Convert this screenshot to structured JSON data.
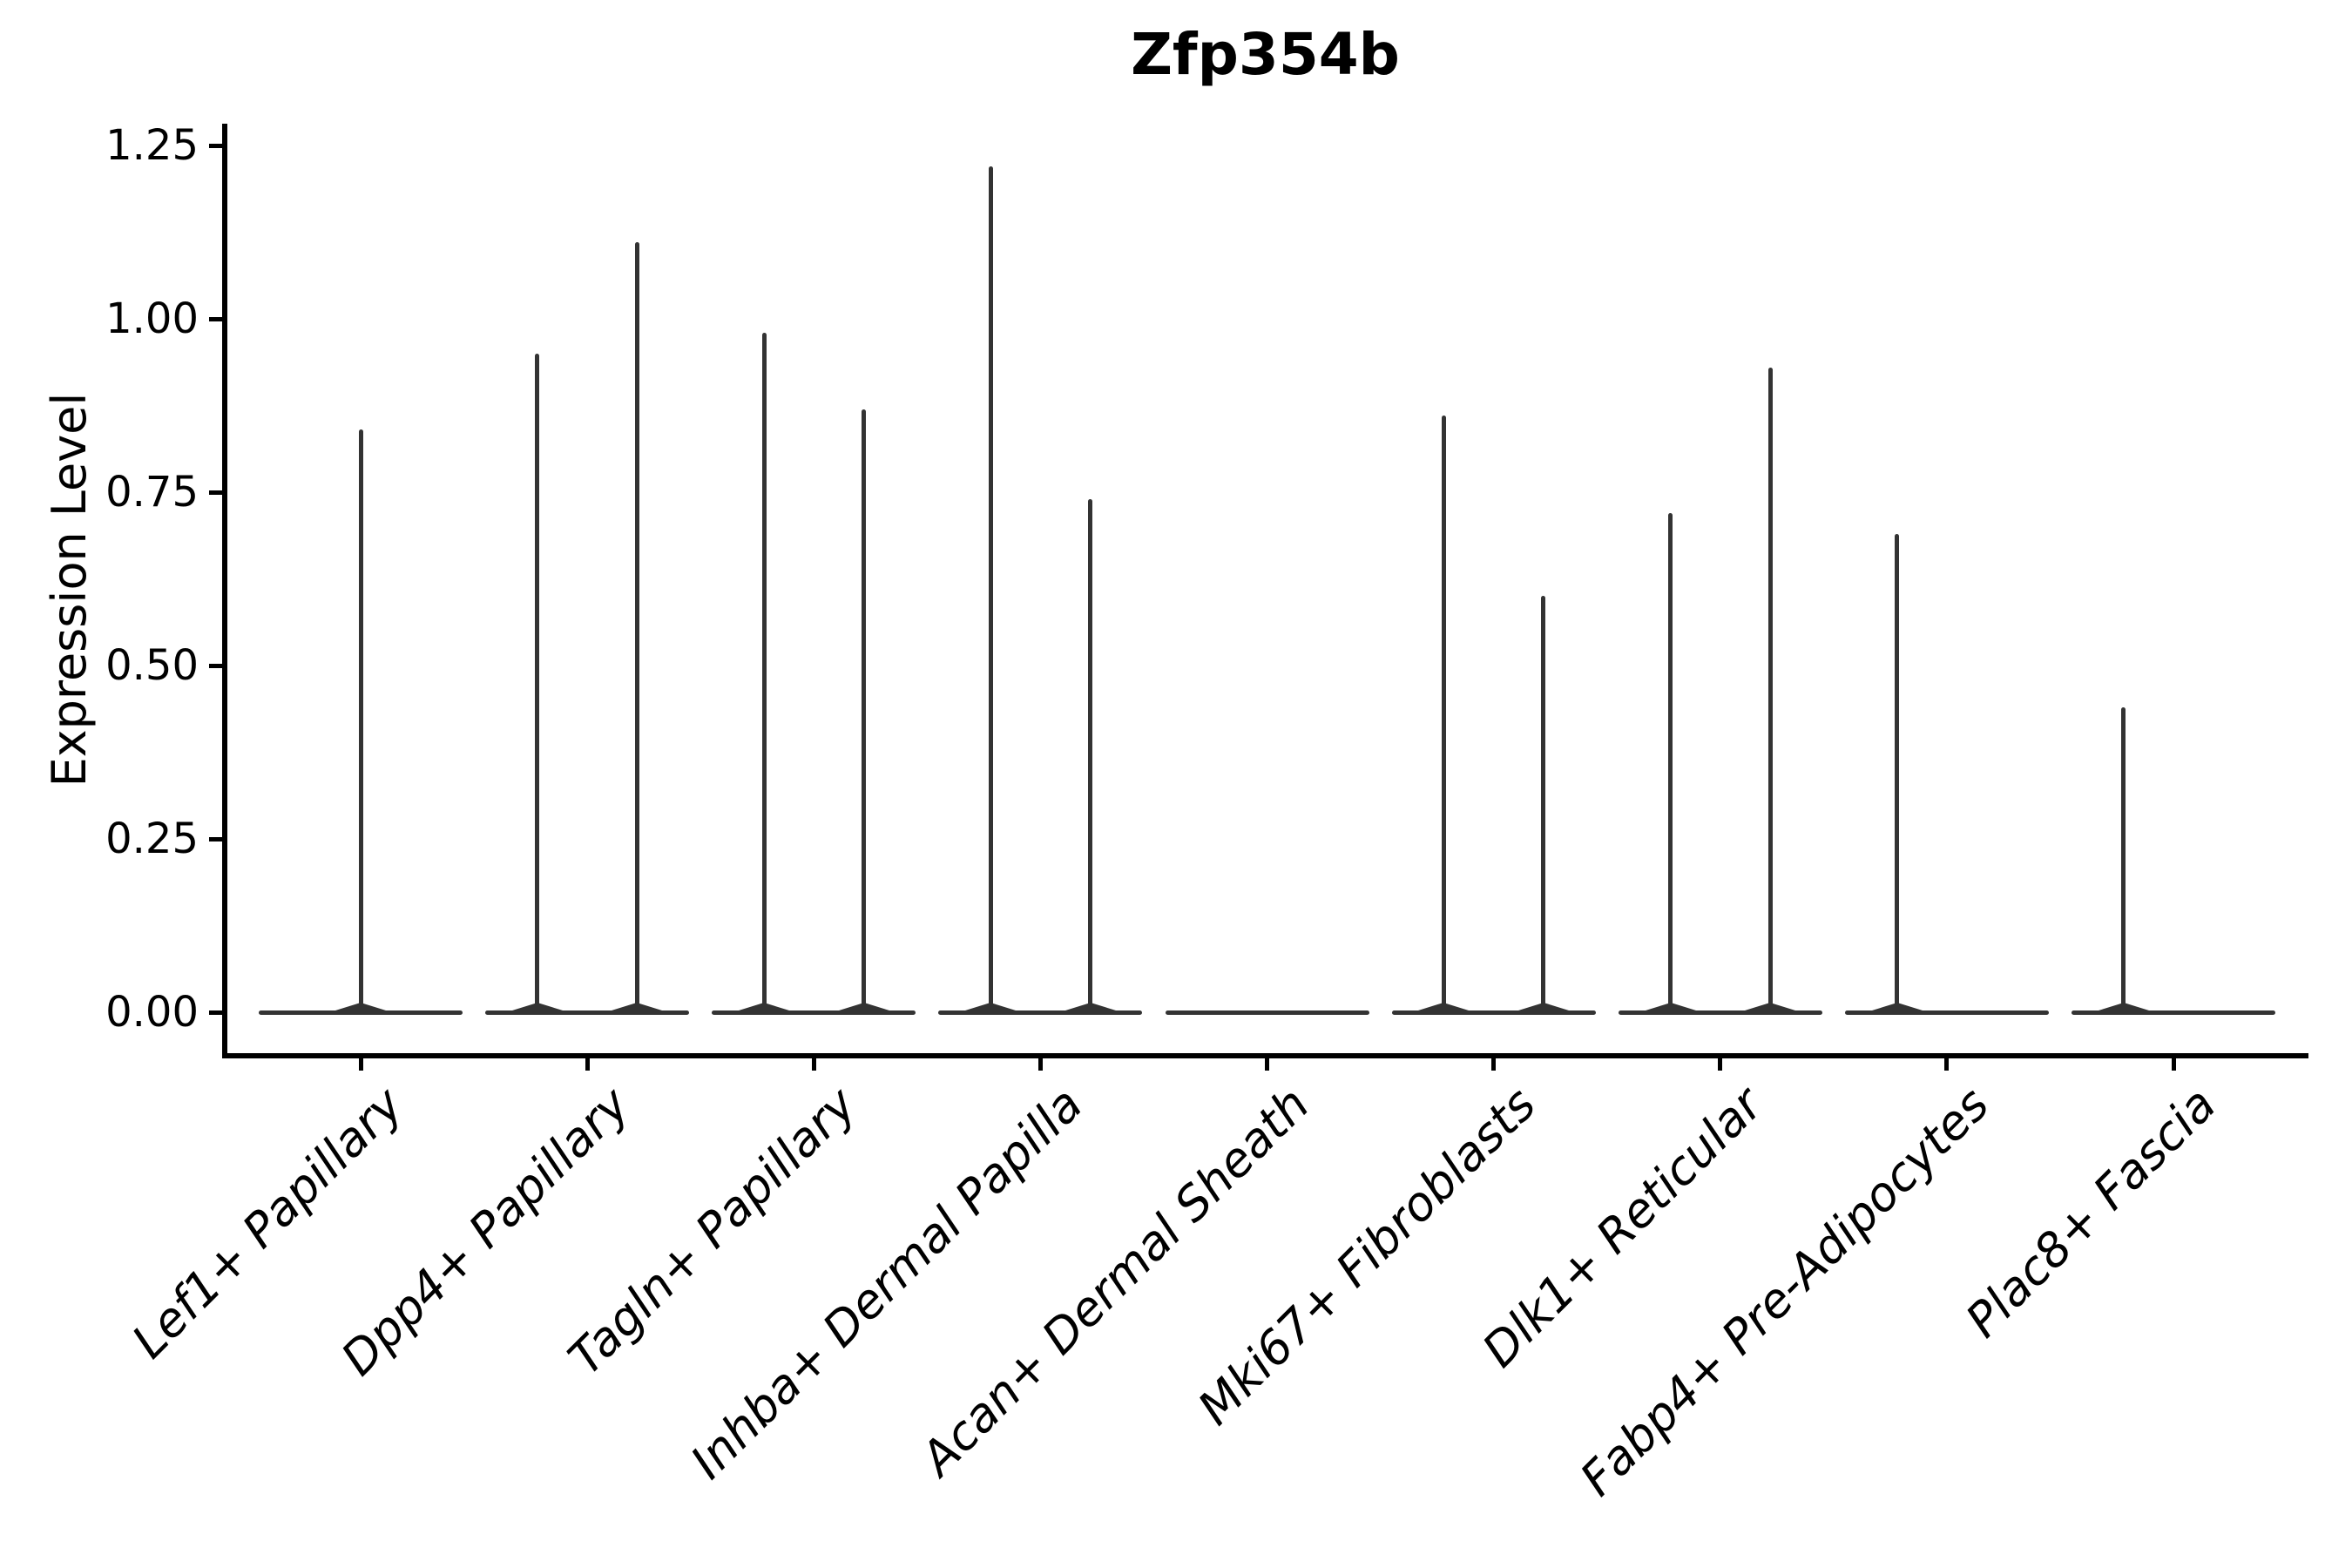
{
  "figure": {
    "title": "Zfp354b"
  },
  "y_axis": {
    "label": "Expression Level",
    "tick_labels": [
      "0.00",
      "0.25",
      "0.50",
      "0.75",
      "1.00",
      "1.25"
    ]
  },
  "x_axis": {
    "tick_labels": [
      "Lef1+ Papillary",
      "Dpp4+ Papillary",
      "Tagln+ Papillary",
      "Inhba+ Dermal Papilla",
      "Acan+ Dermal Sheath",
      "Mki67+ Fibroblasts",
      "Dlk1+ Reticular",
      "Fabp4+ Pre-Adipocytes",
      "Plac8+ Fascia"
    ],
    "rotation_degrees": 45,
    "style": "italic"
  },
  "chart_data": {
    "type": "violin",
    "title": "Zfp354b",
    "xlabel": "",
    "ylabel": "Expression Level",
    "categories": [
      "Lef1+ Papillary",
      "Dpp4+ Papillary",
      "Tagln+ Papillary",
      "Inhba+ Dermal Papilla",
      "Acan+ Dermal Sheath",
      "Mki67+ Fibroblasts",
      "Dlk1+ Reticular",
      "Fabp4+ Pre-Adipocytes",
      "Plac8+ Fascia"
    ],
    "yticks": [
      {
        "label": "0.00",
        "value": 0.0
      },
      {
        "label": "0.25",
        "value": 0.25
      },
      {
        "label": "0.50",
        "value": 0.5
      },
      {
        "label": "0.75",
        "value": 0.75
      },
      {
        "label": "1.00",
        "value": 1.0
      },
      {
        "label": "1.25",
        "value": 1.25
      }
    ],
    "ylim": [
      -0.07,
      1.28
    ],
    "grid": false,
    "legend": "none",
    "description": "Collapsed violins: each category shows a flat density line at expression 0 with thin spikes reaching the maximum expression of rare expressing cells.",
    "violins": [
      {
        "category": "Lef1+ Papillary",
        "baseline_value": 0,
        "spikes": [
          {
            "offset": 0.0,
            "value": 0.84
          }
        ]
      },
      {
        "category": "Dpp4+ Papillary",
        "baseline_value": 0,
        "spikes": [
          {
            "offset": -0.22,
            "value": 0.95
          },
          {
            "offset": 0.22,
            "value": 1.11
          }
        ]
      },
      {
        "category": "Tagln+ Papillary",
        "baseline_value": 0,
        "spikes": [
          {
            "offset": -0.22,
            "value": 0.98
          },
          {
            "offset": 0.22,
            "value": 0.87
          }
        ]
      },
      {
        "category": "Inhba+ Dermal Papilla",
        "baseline_value": 0,
        "spikes": [
          {
            "offset": -0.22,
            "value": 1.22
          },
          {
            "offset": 0.22,
            "value": 0.74
          }
        ]
      },
      {
        "category": "Acan+ Dermal Sheath",
        "baseline_value": 0,
        "spikes": []
      },
      {
        "category": "Mki67+ Fibroblasts",
        "baseline_value": 0,
        "spikes": [
          {
            "offset": -0.22,
            "value": 0.86
          },
          {
            "offset": 0.22,
            "value": 0.6
          }
        ]
      },
      {
        "category": "Dlk1+ Reticular",
        "baseline_value": 0,
        "spikes": [
          {
            "offset": -0.22,
            "value": 0.72
          },
          {
            "offset": 0.22,
            "value": 0.93
          }
        ]
      },
      {
        "category": "Fabp4+ Pre-Adipocytes",
        "baseline_value": 0,
        "spikes": [
          {
            "offset": -0.22,
            "value": 0.69
          }
        ]
      },
      {
        "category": "Plac8+ Fascia",
        "baseline_value": 0,
        "spikes": [
          {
            "offset": -0.22,
            "value": 0.44
          }
        ]
      }
    ],
    "colors": {
      "violin_line": "#333333",
      "axis": "#000000",
      "background": "#ffffff"
    }
  }
}
